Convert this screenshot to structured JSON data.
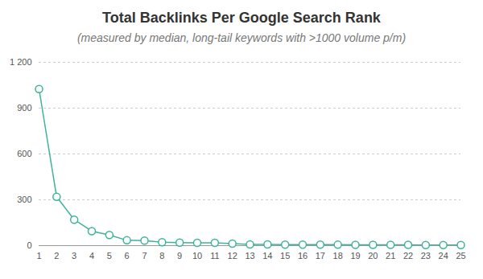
{
  "chart_data": {
    "type": "line",
    "title": "Total Backlinks Per Google Search Rank",
    "subtitle": "(measured by median, long-tail keywords with >1000 volume p/m)",
    "x": [
      1,
      2,
      3,
      4,
      5,
      6,
      7,
      8,
      9,
      10,
      11,
      12,
      13,
      14,
      15,
      16,
      17,
      18,
      19,
      20,
      21,
      22,
      23,
      24,
      25
    ],
    "values": [
      1025,
      320,
      170,
      95,
      70,
      35,
      33,
      22,
      20,
      18,
      18,
      13,
      8,
      8,
      7,
      7,
      7,
      6,
      5,
      5,
      5,
      5,
      4,
      4,
      4
    ],
    "color": "#3db39b",
    "marker": "circle",
    "xlim": [
      1,
      25
    ],
    "xticks": [
      1,
      2,
      3,
      4,
      5,
      6,
      7,
      8,
      9,
      10,
      11,
      12,
      13,
      14,
      15,
      16,
      17,
      18,
      19,
      20,
      21,
      22,
      23,
      24,
      25
    ],
    "ylim": [
      0,
      1200
    ],
    "yticks": [
      0,
      300,
      600,
      900,
      {
        "value": 1200,
        "label": "1 200"
      }
    ],
    "grid": true
  }
}
